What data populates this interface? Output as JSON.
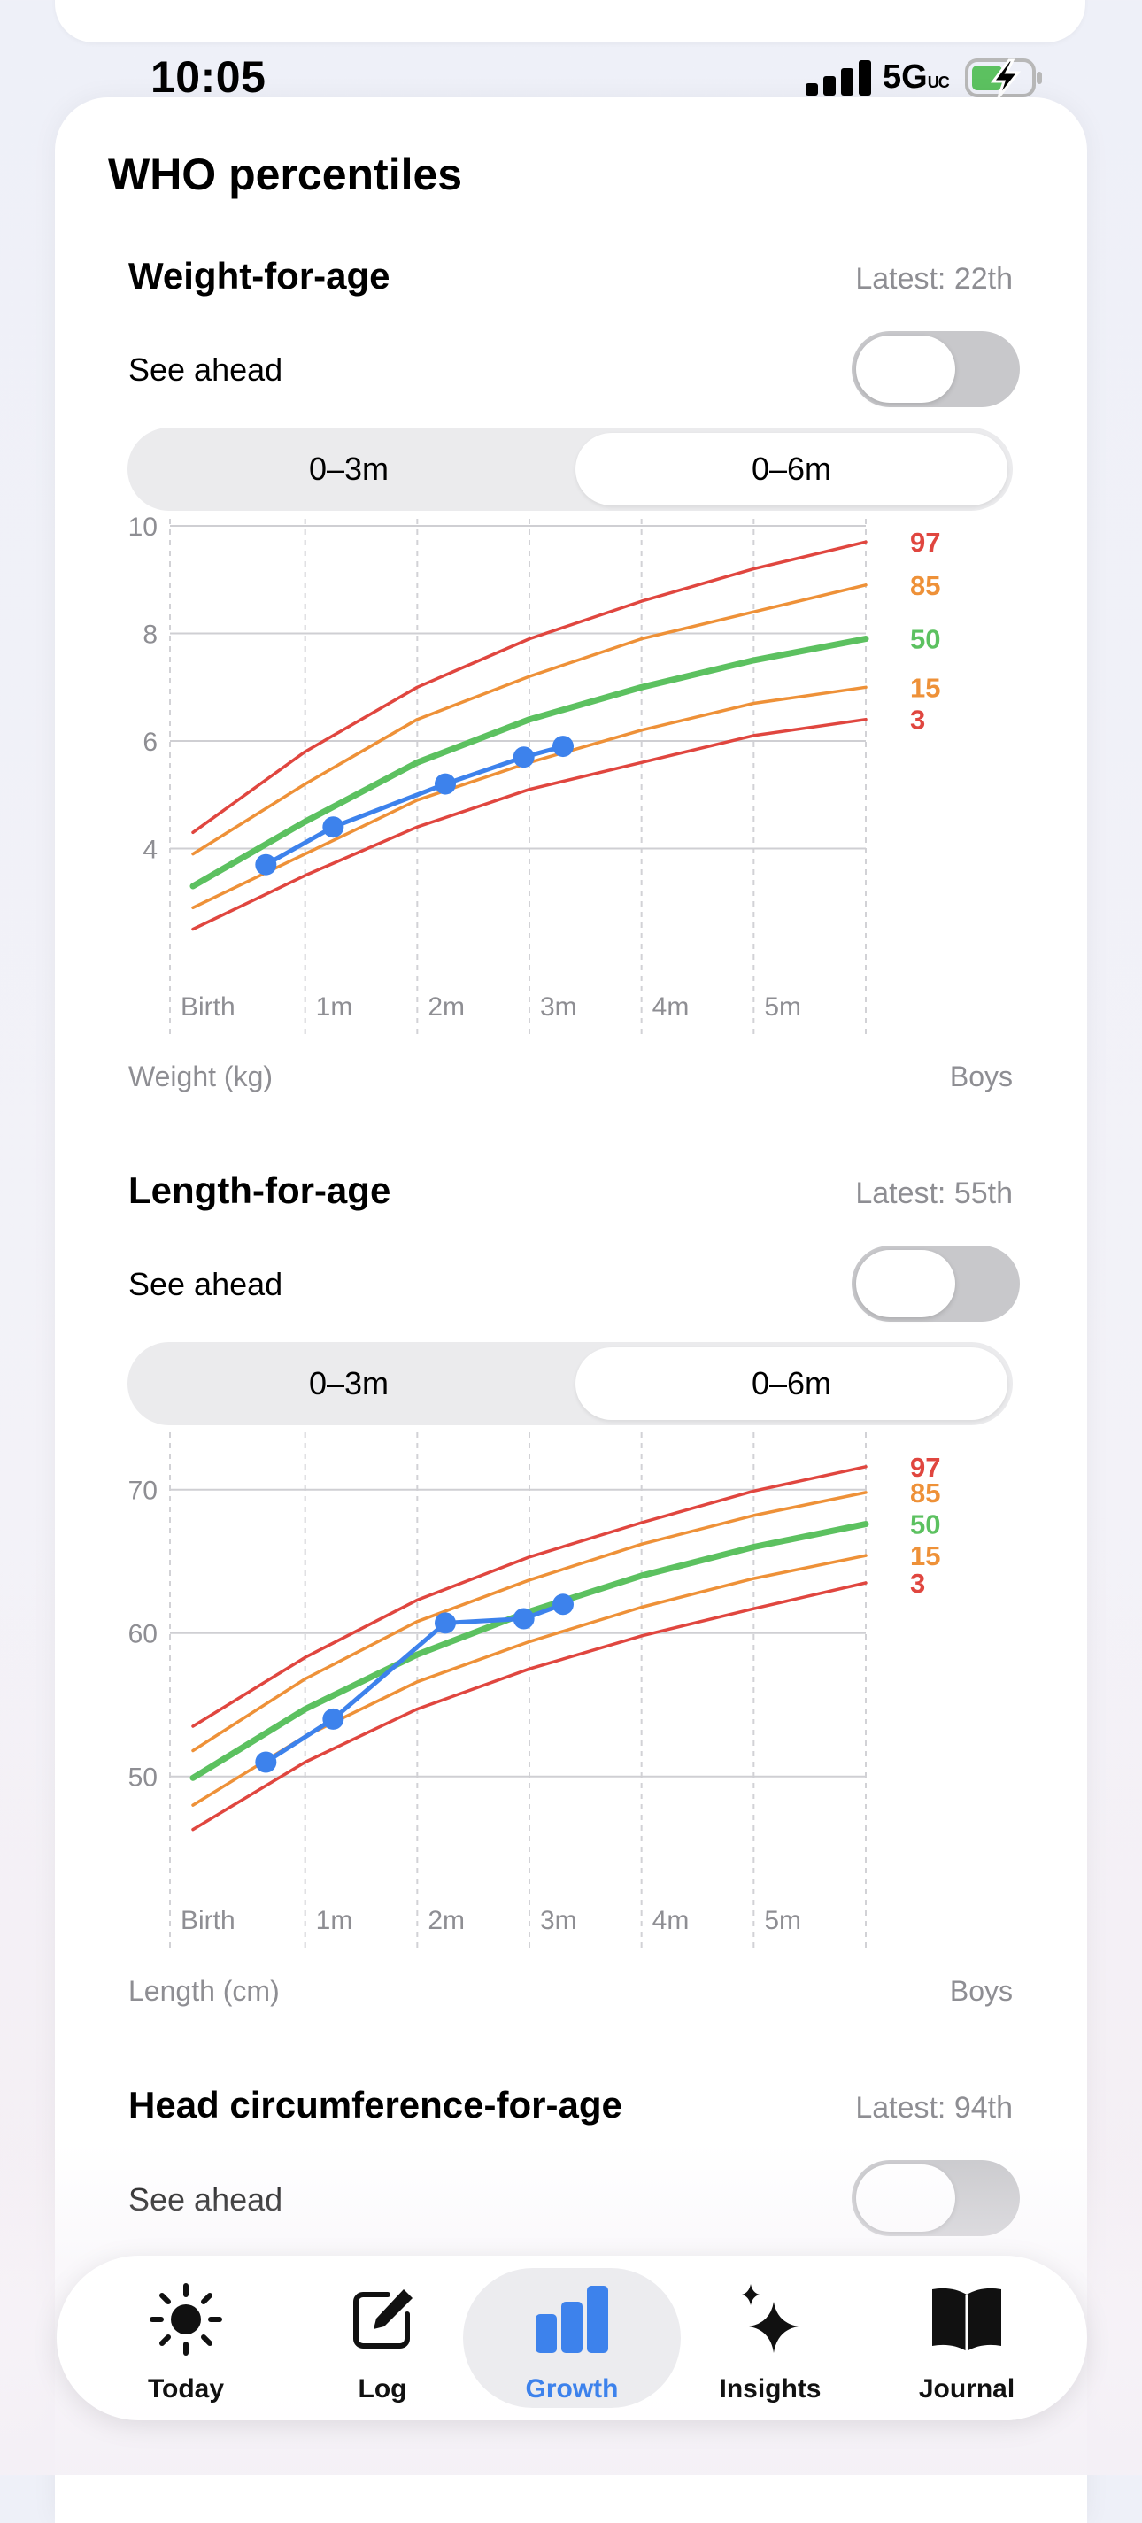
{
  "status": {
    "time": "10:05",
    "network": "5G",
    "network_suffix": "UC"
  },
  "section_title": "WHO percentiles",
  "cards": [
    {
      "title": "Weight-for-age",
      "latest": "Latest: 22th",
      "see_ahead": "See ahead",
      "see_ahead_on": false,
      "range_options": [
        "0–3m",
        "0–6m"
      ],
      "range_selected": "0–6m",
      "unit_label": "Weight (kg)",
      "sex_label": "Boys"
    },
    {
      "title": "Length-for-age",
      "latest": "Latest: 55th",
      "see_ahead": "See ahead",
      "see_ahead_on": false,
      "range_options": [
        "0–3m",
        "0–6m"
      ],
      "range_selected": "0–6m",
      "unit_label": "Length (cm)",
      "sex_label": "Boys"
    },
    {
      "title": "Head circumference-for-age",
      "latest": "Latest: 94th",
      "see_ahead": "See ahead",
      "see_ahead_on": false
    }
  ],
  "chart_data": [
    {
      "type": "line",
      "title": "Weight-for-age",
      "ylabel": "Weight (kg)",
      "x_ticks": [
        "Birth",
        "1m",
        "2m",
        "3m",
        "4m",
        "5m"
      ],
      "y_ticks": [
        4,
        6,
        8,
        10
      ],
      "xlim": [
        0,
        6
      ],
      "ylim": [
        2.0,
        10.0
      ],
      "x": [
        0,
        1,
        2,
        3,
        4,
        5,
        6
      ],
      "series": [
        {
          "name": "97",
          "color": "#e0463f",
          "values": [
            4.3,
            5.8,
            7.0,
            7.9,
            8.6,
            9.2,
            9.7
          ]
        },
        {
          "name": "85",
          "color": "#ee9138",
          "values": [
            3.9,
            5.2,
            6.4,
            7.2,
            7.9,
            8.4,
            8.9
          ]
        },
        {
          "name": "50",
          "color": "#5cc160",
          "values": [
            3.3,
            4.5,
            5.6,
            6.4,
            7.0,
            7.5,
            7.9
          ]
        },
        {
          "name": "15",
          "color": "#ee9138",
          "values": [
            2.9,
            3.9,
            4.9,
            5.6,
            6.2,
            6.7,
            7.0
          ]
        },
        {
          "name": "3",
          "color": "#e0463f",
          "values": [
            2.5,
            3.5,
            4.4,
            5.1,
            5.6,
            6.1,
            6.4
          ]
        }
      ],
      "measurements": {
        "color": "#3d82ec",
        "x": [
          0.65,
          1.25,
          2.25,
          2.95,
          3.3
        ],
        "y": [
          3.7,
          4.4,
          5.2,
          5.7,
          5.9
        ]
      }
    },
    {
      "type": "line",
      "title": "Length-for-age",
      "ylabel": "Length (cm)",
      "x_ticks": [
        "Birth",
        "1m",
        "2m",
        "3m",
        "4m",
        "5m"
      ],
      "y_ticks": [
        50,
        60,
        70
      ],
      "xlim": [
        0,
        6
      ],
      "ylim": [
        43.5,
        73.5
      ],
      "x": [
        0,
        1,
        2,
        3,
        4,
        5,
        6
      ],
      "series": [
        {
          "name": "97",
          "color": "#e0463f",
          "values": [
            53.5,
            58.3,
            62.3,
            65.3,
            67.7,
            69.9,
            71.6
          ]
        },
        {
          "name": "85",
          "color": "#ee9138",
          "values": [
            51.8,
            56.8,
            60.8,
            63.7,
            66.2,
            68.2,
            69.8
          ]
        },
        {
          "name": "50",
          "color": "#5cc160",
          "values": [
            49.9,
            54.7,
            58.5,
            61.5,
            64.0,
            66.0,
            67.6
          ]
        },
        {
          "name": "15",
          "color": "#ee9138",
          "values": [
            48.0,
            52.8,
            56.6,
            59.4,
            61.8,
            63.8,
            65.4
          ]
        },
        {
          "name": "3",
          "color": "#e0463f",
          "values": [
            46.3,
            51.0,
            54.7,
            57.5,
            59.8,
            61.7,
            63.5
          ]
        }
      ],
      "measurements": {
        "color": "#3d82ec",
        "x": [
          0.65,
          1.25,
          2.25,
          2.95,
          3.3
        ],
        "y": [
          51.0,
          54.0,
          60.7,
          61.0,
          62.0
        ]
      }
    }
  ],
  "tabs": [
    {
      "label": "Today",
      "icon": "sun-icon",
      "active": false
    },
    {
      "label": "Log",
      "icon": "edit-icon",
      "active": false
    },
    {
      "label": "Growth",
      "icon": "bar-chart-icon",
      "active": true
    },
    {
      "label": "Insights",
      "icon": "sparkles-icon",
      "active": false
    },
    {
      "label": "Journal",
      "icon": "book-icon",
      "active": false
    }
  ],
  "colors": {
    "accent": "#3d82ec",
    "p97_p3": "#e0463f",
    "p85_p15": "#ee9138",
    "p50": "#5cc160"
  }
}
